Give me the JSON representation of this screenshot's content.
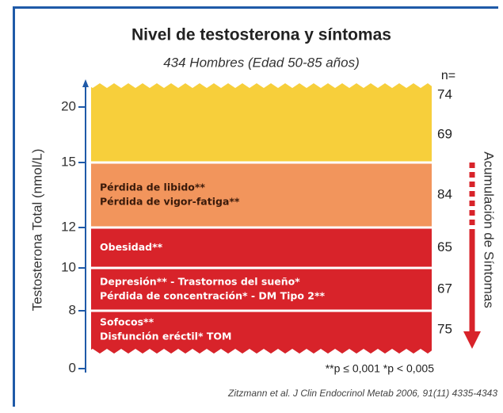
{
  "chart_data": {
    "type": "band",
    "title": "Nivel de testosterona y síntomas",
    "subtitle": "434 Hombres (Edad 50-85 años)",
    "y_label": "Testosterona Total (nmol/L)",
    "right_label": "Acumulación de Síntomas",
    "n_header": "n=",
    "yticks": [
      0,
      8,
      10,
      12,
      15,
      20
    ],
    "groups": [
      {
        "lower": 20,
        "upper": null,
        "n": 74,
        "color": "#f7cf3b",
        "symptoms": []
      },
      {
        "lower": 15,
        "upper": 20,
        "n": 69,
        "color": "#f7cf3b",
        "symptoms": []
      },
      {
        "lower": 12,
        "upper": 15,
        "n": 84,
        "color": "#f2955c",
        "symptoms": [
          "Pérdida de libido**",
          "Pérdida de vigor-fatiga**"
        ]
      },
      {
        "lower": 10,
        "upper": 12,
        "n": 65,
        "color": "#d8232a",
        "symptoms": [
          "Obesidad**"
        ]
      },
      {
        "lower": 8,
        "upper": 10,
        "n": 67,
        "color": "#d8232a",
        "symptoms": [
          "Depresión** - Trastornos del sueño*",
          "Pérdida de concentración* - DM Tipo 2**"
        ]
      },
      {
        "lower": null,
        "upper": 8,
        "n": 75,
        "color": "#d8232a",
        "symptoms": [
          "Sofocos**",
          "Disfunción eréctil* TOM"
        ]
      }
    ],
    "footnote": "**p ≤ 0,001  *p < 0,005",
    "citation": "Zitzmann et al. J Clin Endocrinol Metab 2006, 91(11) 4335-4343"
  }
}
